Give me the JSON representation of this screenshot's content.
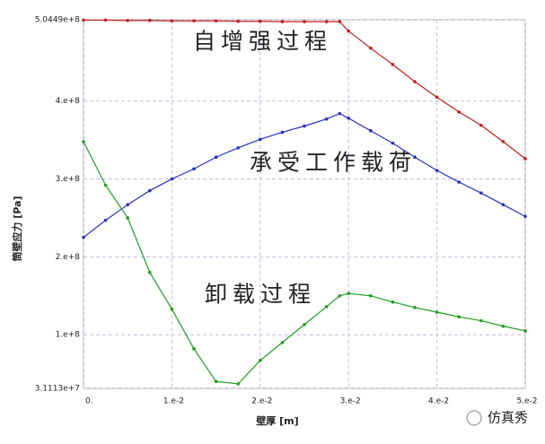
{
  "chart_data": {
    "type": "line",
    "x_label": "壁厚 [m]",
    "y_label": "筒壁应力 [Pa]",
    "annotations": [
      "自增强过程",
      "承受工作载荷",
      "卸载过程"
    ],
    "watermark": "仿真秀",
    "x": [
      0,
      0.0025,
      0.005,
      0.0075,
      0.01,
      0.0125,
      0.015,
      0.0175,
      0.02,
      0.0225,
      0.025,
      0.0275,
      0.029,
      0.03,
      0.0325,
      0.035,
      0.0375,
      0.04,
      0.0425,
      0.045,
      0.0475,
      0.05
    ],
    "series": [
      {
        "color": "#c41e1e",
        "values": [
          504000000,
          504000000,
          503500000,
          503500000,
          503000000,
          503000000,
          503000000,
          502500000,
          502500000,
          502000000,
          502000000,
          502000000,
          502000000,
          490000000,
          468000000,
          447000000,
          425000000,
          405000000,
          386000000,
          369000000,
          348000000,
          326000000
        ]
      },
      {
        "color": "#2b2fc4",
        "values": [
          225000000,
          247000000,
          267000000,
          285000000,
          300000000,
          313000000,
          328000000,
          340000000,
          351000000,
          360000000,
          368000000,
          377000000,
          384000000,
          378000000,
          362000000,
          346000000,
          328000000,
          311000000,
          296000000,
          282000000,
          267000000,
          252000000
        ]
      },
      {
        "color": "#1f9e1f",
        "values": [
          348000000,
          292000000,
          250000000,
          180000000,
          133000000,
          82000000,
          40000000,
          37000000,
          67000000,
          90000000,
          113000000,
          136000000,
          150000000,
          153000000,
          150000000,
          142000000,
          135000000,
          129000000,
          123000000,
          118000000,
          111000000,
          105000000
        ]
      }
    ],
    "xlim": [
      0,
      0.05
    ],
    "ylim": [
      31113000,
      504490000
    ],
    "xticks": [
      {
        "value": 0,
        "label": "0."
      },
      {
        "value": 0.01,
        "label": "1.e-2"
      },
      {
        "value": 0.02,
        "label": "2.e-2"
      },
      {
        "value": 0.03,
        "label": "3.e-2"
      },
      {
        "value": 0.04,
        "label": "4.e-2"
      },
      {
        "value": 0.05,
        "label": "5.e-2"
      }
    ],
    "yticks": [
      {
        "value": 31113000,
        "label": "3.1113e+7"
      },
      {
        "value": 100000000,
        "label": "1.e+8"
      },
      {
        "value": 200000000,
        "label": "2.e+8"
      },
      {
        "value": 300000000,
        "label": "3.e+8"
      },
      {
        "value": 400000000,
        "label": "4.e+8"
      },
      {
        "value": 504490000,
        "label": "5.0449e+8"
      }
    ],
    "grid": true
  }
}
